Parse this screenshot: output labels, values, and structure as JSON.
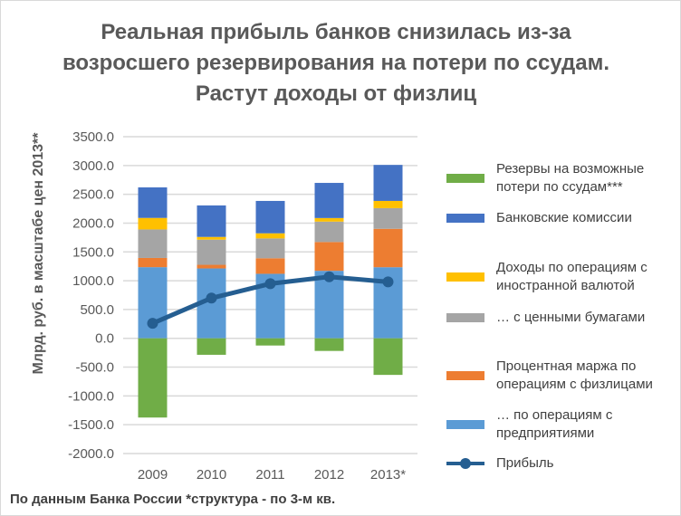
{
  "chart_data": {
    "type": "bar",
    "title": "Реальная прибыль банков снизилась из-за возросшего резервирования на потери по ссудам. Растут доходы от физлиц",
    "ylabel": "Млрд. руб. в масштабе цен 2013**",
    "xlabel": "",
    "footnote": "По данным Банка России *структура - по 3-м кв.",
    "ylim": [
      -2000,
      3500
    ],
    "yticks": [
      "3500.0",
      "3000.0",
      "2500.0",
      "2000.0",
      "1500.0",
      "1000.0",
      "500.0",
      "0.0",
      "-500.0",
      "-1000.0",
      "-1500.0",
      "-2000.0"
    ],
    "categories": [
      "2009",
      "2010",
      "2011",
      "2012",
      "2013*"
    ],
    "series": [
      {
        "name": "Резервы на возможные потери по ссудам***",
        "color": "#70ad47",
        "values": [
          -1375,
          -286,
          -125,
          -219,
          -635
        ]
      },
      {
        "name": "Банковские комиссии",
        "color": "#4472c4",
        "values": [
          530,
          547,
          562,
          610,
          625
        ]
      },
      {
        "name": "Доходы по операциям с иностранной валютой",
        "color": "#ffc000",
        "values": [
          200,
          47,
          89,
          62,
          125
        ]
      },
      {
        "name": "… с ценными бумагами",
        "color": "#a5a5a5",
        "values": [
          495,
          437,
          344,
          354,
          359
        ]
      },
      {
        "name": "Процентная маржа по операциям с физлицами",
        "color": "#ed7d31",
        "values": [
          160,
          63,
          270,
          500,
          667
        ]
      },
      {
        "name": "… по операциям с предприятиями",
        "color": "#5b9bd5",
        "values": [
          1235,
          1213,
          1120,
          1172,
          1234
        ]
      },
      {
        "name": "Прибыль",
        "color": "#255e91",
        "type": "line",
        "values": [
          260,
          698,
          948,
          1068,
          979
        ]
      }
    ],
    "legend": {
      "position": "right",
      "lines": [
        [
          "Резервы на возможные",
          "потери по ссудам***"
        ],
        [
          "Банковские комиссии"
        ],
        [
          "Доходы по операциям с",
          "иностранной валютой"
        ],
        [
          "… с ценными бумагами"
        ],
        [
          "Процентная маржа по",
          "операциям с физлицами"
        ],
        [
          "… по операциям с",
          "предприятиями"
        ],
        [
          "Прибыль"
        ]
      ]
    },
    "grid": true
  }
}
